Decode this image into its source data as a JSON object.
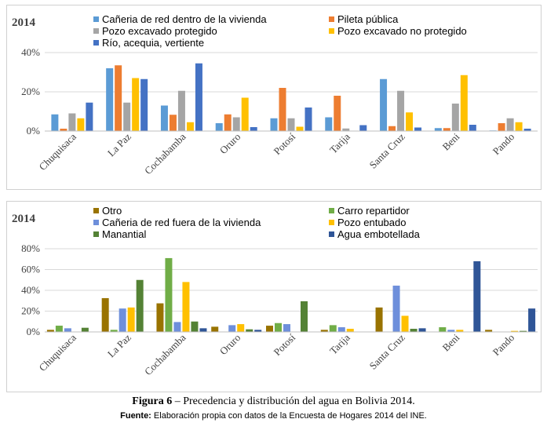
{
  "caption": {
    "figure_label": "Figura 6",
    "title": " – Precedencia y distribución del agua en Bolivia 2014."
  },
  "source": {
    "label": "Fuente:",
    "text": " Elaboración propia con datos de la Encuesta de Hogares 2014 del INE."
  },
  "colors": {
    "blue_light": "#5B9BD5",
    "orange": "#ED7D31",
    "gray": "#A5A5A5",
    "yellow": "#FFC000",
    "blue_dark": "#4472C4",
    "olive": "#997300",
    "green_light": "#70AD47",
    "cornflower": "#6E8FDB",
    "green_dark": "#548235",
    "navy": "#2F5597"
  },
  "chart_data": [
    {
      "type": "bar",
      "panel_label": "2014",
      "categories": [
        "Chuquisaca",
        "La Paz",
        "Cochabamba",
        "Oruro",
        "Potosí",
        "Tarija",
        "Santa Cruz",
        "Beni",
        "Pando"
      ],
      "yticks": [
        "0%",
        "20%",
        "40%"
      ],
      "ylim": [
        0,
        40
      ],
      "grid": true,
      "legend_position": "top",
      "series": [
        {
          "name": "Cañeria de red dentro de la vivienda",
          "color": "#5B9BD5",
          "values": [
            8.5,
            32,
            13,
            4,
            6.5,
            7,
            26.5,
            1.5,
            0.3
          ]
        },
        {
          "name": "Pileta pública",
          "color": "#ED7D31",
          "values": [
            1.2,
            33.5,
            8.3,
            8.5,
            22,
            18,
            2.5,
            1.5,
            4
          ]
        },
        {
          "name": "Pozo excavado protegido",
          "color": "#A5A5A5",
          "values": [
            9,
            14.5,
            20.5,
            7,
            6.5,
            1.3,
            20.5,
            14,
            6.5
          ]
        },
        {
          "name": "Pozo excavado no protegido",
          "color": "#FFC000",
          "values": [
            6.5,
            27,
            4.5,
            17,
            2.2,
            0,
            9.5,
            28.5,
            4.5
          ]
        },
        {
          "name": "Río, acequia, vertiente",
          "color": "#4472C4",
          "values": [
            14.5,
            26.5,
            34.5,
            2,
            12,
            3,
            1.8,
            3.2,
            1.2
          ]
        }
      ]
    },
    {
      "type": "bar",
      "panel_label": "2014",
      "categories": [
        "Chuquisaca",
        "La Paz",
        "Cochabamba",
        "Oruro",
        "Potosí",
        "Tarija",
        "Santa Cruz",
        "Beni",
        "Pando"
      ],
      "yticks": [
        "0%",
        "20%",
        "40%",
        "60%",
        "80%"
      ],
      "ylim": [
        0,
        80
      ],
      "grid": true,
      "legend_position": "top",
      "series": [
        {
          "name": "Otro",
          "color": "#997300",
          "values": [
            2,
            32.5,
            27.5,
            5,
            6,
            2,
            23.5,
            0,
            2
          ]
        },
        {
          "name": "Carro repartidor",
          "color": "#70AD47",
          "values": [
            6,
            2,
            71,
            0,
            8.5,
            6.5,
            0,
            4.5,
            0
          ]
        },
        {
          "name": "Cañeria de red fuera de la vivienda",
          "color": "#6E8FDB",
          "values": [
            3.5,
            22.5,
            9.5,
            6.5,
            7.5,
            4.5,
            44.5,
            2,
            0
          ]
        },
        {
          "name": "Pozo entubado",
          "color": "#FFC000",
          "values": [
            0,
            23.5,
            48,
            7.5,
            0,
            3,
            15.5,
            2,
            1
          ]
        },
        {
          "name": "Manantial",
          "color": "#548235",
          "values": [
            4,
            50,
            10,
            2.5,
            29.5,
            0,
            3,
            0,
            1
          ]
        },
        {
          "name": "Agua embotellada",
          "color": "#2F5597",
          "values": [
            0,
            0,
            3.5,
            2,
            0,
            0,
            3.5,
            68,
            22.5
          ]
        }
      ]
    }
  ]
}
